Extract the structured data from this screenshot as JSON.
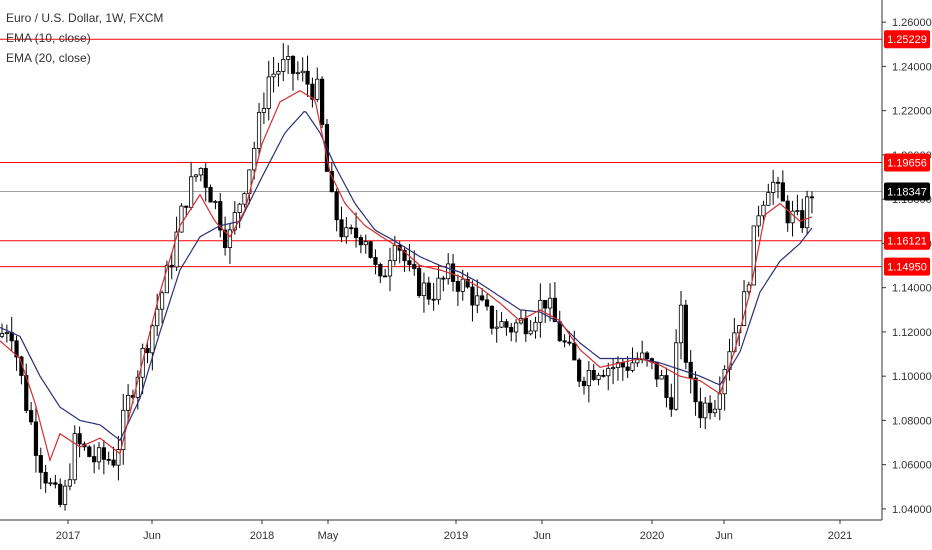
{
  "legend": {
    "title": "Euro / U.S. Dollar, 1W, FXCM",
    "ema10": "EMA (10, close)",
    "ema20": "EMA (20, close)"
  },
  "colors": {
    "up": "#ffffff",
    "down": "#000000",
    "wick": "#000000",
    "ema10": "#d32f2f",
    "ema20": "#2b2f7a",
    "level": "#ff0000",
    "last": "#000000"
  },
  "chart_data": {
    "type": "line",
    "title": "Euro / U.S. Dollar, 1W, FXCM",
    "ylim": [
      1.035,
      1.27
    ],
    "y_ticks": [
      "1.04000",
      "1.06000",
      "1.08000",
      "1.10000",
      "1.12000",
      "1.14000",
      "1.16000",
      "1.18000",
      "1.20000",
      "1.22000",
      "1.24000",
      "1.26000"
    ],
    "x_ticks": [
      "2017",
      "Jun",
      "2018",
      "May",
      "2019",
      "Jun",
      "2020",
      "Jun",
      "2021"
    ],
    "horizontal_levels": [
      {
        "label": "1.25229",
        "value": 1.25229
      },
      {
        "label": "1.19656",
        "value": 1.19656
      },
      {
        "label": "1.16121",
        "value": 1.16121
      },
      {
        "label": "1.14950",
        "value": 1.1495
      }
    ],
    "last_price": {
      "label": "1.18347",
      "value": 1.18347
    },
    "series": [
      {
        "name": "EMA (10, close)",
        "keypoints": [
          [
            0,
            1.116
          ],
          [
            20,
            1.108
          ],
          [
            35,
            1.088
          ],
          [
            50,
            1.062
          ],
          [
            60,
            1.074
          ],
          [
            80,
            1.068
          ],
          [
            100,
            1.072
          ],
          [
            120,
            1.065
          ],
          [
            140,
            1.102
          ],
          [
            160,
            1.138
          ],
          [
            180,
            1.168
          ],
          [
            200,
            1.182
          ],
          [
            215,
            1.17
          ],
          [
            230,
            1.163
          ],
          [
            245,
            1.175
          ],
          [
            262,
            1.205
          ],
          [
            280,
            1.224
          ],
          [
            300,
            1.229
          ],
          [
            315,
            1.225
          ],
          [
            330,
            1.192
          ],
          [
            345,
            1.178
          ],
          [
            365,
            1.168
          ],
          [
            385,
            1.162
          ],
          [
            400,
            1.158
          ],
          [
            420,
            1.15
          ],
          [
            440,
            1.148
          ],
          [
            460,
            1.145
          ],
          [
            480,
            1.14
          ],
          [
            500,
            1.133
          ],
          [
            520,
            1.125
          ],
          [
            540,
            1.13
          ],
          [
            560,
            1.125
          ],
          [
            580,
            1.112
          ],
          [
            600,
            1.104
          ],
          [
            620,
            1.106
          ],
          [
            640,
            1.108
          ],
          [
            660,
            1.105
          ],
          [
            680,
            1.1
          ],
          [
            700,
            1.098
          ],
          [
            720,
            1.092
          ],
          [
            735,
            1.112
          ],
          [
            750,
            1.138
          ],
          [
            765,
            1.173
          ],
          [
            780,
            1.178
          ],
          [
            800,
            1.17
          ],
          [
            812,
            1.172
          ]
        ]
      },
      {
        "name": "EMA (20, close)",
        "keypoints": [
          [
            0,
            1.122
          ],
          [
            20,
            1.118
          ],
          [
            40,
            1.1
          ],
          [
            60,
            1.086
          ],
          [
            80,
            1.08
          ],
          [
            100,
            1.078
          ],
          [
            120,
            1.071
          ],
          [
            140,
            1.09
          ],
          [
            160,
            1.12
          ],
          [
            180,
            1.148
          ],
          [
            200,
            1.163
          ],
          [
            220,
            1.168
          ],
          [
            240,
            1.17
          ],
          [
            262,
            1.19
          ],
          [
            285,
            1.21
          ],
          [
            305,
            1.22
          ],
          [
            320,
            1.21
          ],
          [
            335,
            1.195
          ],
          [
            355,
            1.178
          ],
          [
            375,
            1.166
          ],
          [
            395,
            1.161
          ],
          [
            420,
            1.154
          ],
          [
            440,
            1.15
          ],
          [
            460,
            1.147
          ],
          [
            480,
            1.142
          ],
          [
            500,
            1.136
          ],
          [
            520,
            1.13
          ],
          [
            540,
            1.129
          ],
          [
            560,
            1.124
          ],
          [
            580,
            1.115
          ],
          [
            600,
            1.108
          ],
          [
            620,
            1.108
          ],
          [
            640,
            1.108
          ],
          [
            660,
            1.106
          ],
          [
            680,
            1.103
          ],
          [
            700,
            1.1
          ],
          [
            720,
            1.096
          ],
          [
            740,
            1.111
          ],
          [
            760,
            1.138
          ],
          [
            780,
            1.152
          ],
          [
            800,
            1.16
          ],
          [
            812,
            1.167
          ]
        ]
      },
      {
        "name": "price",
        "keypoints": [
          [
            0,
            1.118
          ],
          [
            10,
            1.125
          ],
          [
            25,
            1.09
          ],
          [
            40,
            1.062
          ],
          [
            52,
            1.048
          ],
          [
            62,
            1.04
          ],
          [
            75,
            1.07
          ],
          [
            95,
            1.062
          ],
          [
            115,
            1.063
          ],
          [
            130,
            1.092
          ],
          [
            150,
            1.12
          ],
          [
            170,
            1.15
          ],
          [
            185,
            1.18
          ],
          [
            200,
            1.195
          ],
          [
            215,
            1.178
          ],
          [
            228,
            1.16
          ],
          [
            240,
            1.18
          ],
          [
            255,
            1.205
          ],
          [
            268,
            1.235
          ],
          [
            282,
            1.24
          ],
          [
            300,
            1.236
          ],
          [
            318,
            1.228
          ],
          [
            330,
            1.18
          ],
          [
            345,
            1.162
          ],
          [
            365,
            1.165
          ],
          [
            380,
            1.14
          ],
          [
            395,
            1.165
          ],
          [
            410,
            1.145
          ],
          [
            430,
            1.137
          ],
          [
            450,
            1.146
          ],
          [
            470,
            1.138
          ],
          [
            490,
            1.125
          ],
          [
            510,
            1.122
          ],
          [
            530,
            1.126
          ],
          [
            545,
            1.135
          ],
          [
            560,
            1.118
          ],
          [
            580,
            1.1
          ],
          [
            600,
            1.105
          ],
          [
            620,
            1.104
          ],
          [
            640,
            1.108
          ],
          [
            660,
            1.1
          ],
          [
            670,
            1.085
          ],
          [
            680,
            1.13
          ],
          [
            690,
            1.095
          ],
          [
            700,
            1.085
          ],
          [
            715,
            1.09
          ],
          [
            730,
            1.115
          ],
          [
            745,
            1.135
          ],
          [
            758,
            1.175
          ],
          [
            770,
            1.19
          ],
          [
            785,
            1.175
          ],
          [
            800,
            1.168
          ],
          [
            812,
            1.184
          ]
        ]
      }
    ]
  }
}
